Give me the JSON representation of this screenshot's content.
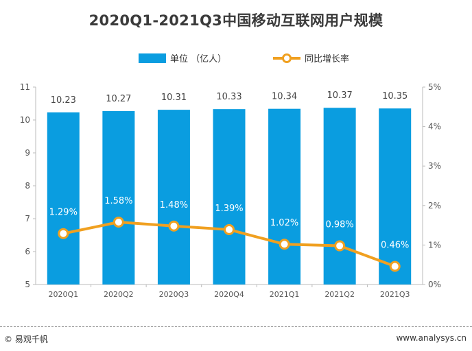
{
  "chart_data": {
    "type": "bar",
    "title": "2020Q1-2021Q3中国移动互联网用户规模",
    "categories": [
      "2020Q1",
      "2020Q2",
      "2020Q3",
      "2020Q4",
      "2021Q1",
      "2021Q2",
      "2021Q3"
    ],
    "series": [
      {
        "name": "单位 （亿人）",
        "type": "bar",
        "axis": "left",
        "values": [
          10.23,
          10.27,
          10.31,
          10.33,
          10.34,
          10.37,
          10.35
        ],
        "labels": [
          "10.23",
          "10.27",
          "10.31",
          "10.33",
          "10.34",
          "10.37",
          "10.35"
        ]
      },
      {
        "name": "同比增长率",
        "type": "line",
        "axis": "right",
        "values": [
          1.29,
          1.58,
          1.48,
          1.39,
          1.02,
          0.98,
          0.46
        ],
        "labels": [
          "1.29%",
          "1.58%",
          "1.48%",
          "1.39%",
          "1.02%",
          "0.98%",
          "0.46%"
        ]
      }
    ],
    "ylim_left": [
      5,
      11
    ],
    "yticks_left": [
      "5",
      "6",
      "7",
      "8",
      "9",
      "10",
      "11"
    ],
    "ylim_right": [
      0,
      5
    ],
    "yticks_right": [
      "0%",
      "1%",
      "2%",
      "3%",
      "4%",
      "5%"
    ],
    "legend_position": "top-center",
    "grid": false
  },
  "colors": {
    "bar": "#0a9de0",
    "line": "#f0a020",
    "marker_fill": "#ffffff",
    "axis": "#bbbbbb",
    "tick_text": "#555555",
    "label_text": "#444444",
    "inbar_label": "#ffffff"
  },
  "footer": {
    "left": "© 易观千帆",
    "right": "www.analysys.cn"
  }
}
